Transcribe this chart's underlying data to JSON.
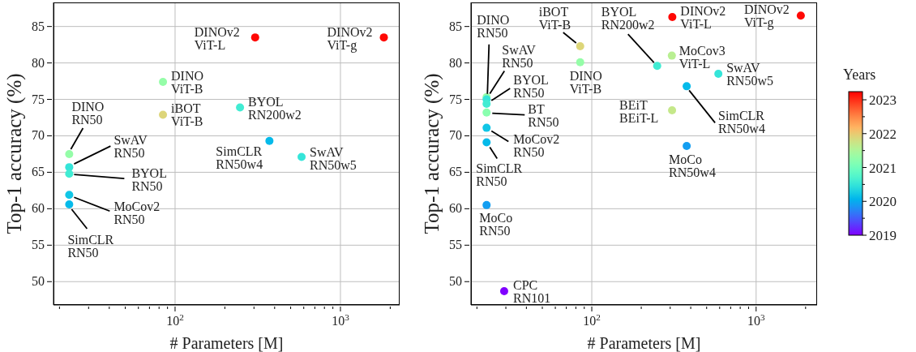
{
  "chart_data": [
    {
      "type": "scatter",
      "xlabel": "# Parameters [M]",
      "ylabel": "Top-1 accuracy (%)",
      "log": "x",
      "grid": true,
      "marker": "circle",
      "xlim": [
        18.4,
        2280
      ],
      "ylim": [
        46.8,
        88.3
      ],
      "xticks": [
        {
          "value": 20,
          "label": null
        },
        {
          "value": 30,
          "label": null
        },
        {
          "value": 40,
          "label": null
        },
        {
          "value": 50,
          "label": null
        },
        {
          "value": 60,
          "label": null
        },
        {
          "value": 70,
          "label": null
        },
        {
          "value": 80,
          "label": null
        },
        {
          "value": 90,
          "label": null
        },
        {
          "value": 100,
          "label": "10$^{2}$"
        },
        {
          "value": 200,
          "label": null
        },
        {
          "value": 300,
          "label": null
        },
        {
          "value": 400,
          "label": null
        },
        {
          "value": 500,
          "label": null
        },
        {
          "value": 600,
          "label": null
        },
        {
          "value": 700,
          "label": null
        },
        {
          "value": 800,
          "label": null
        },
        {
          "value": 900,
          "label": null
        },
        {
          "value": 1000,
          "label": "10$^{3}$"
        },
        {
          "value": 2000,
          "label": null
        }
      ],
      "yticks": [
        50,
        55,
        60,
        65,
        70,
        75,
        80,
        85
      ],
      "x": [
        305,
        1830,
        84.5,
        84.5,
        247,
        372,
        582,
        22.9,
        22.9,
        22.9,
        22.9,
        22.9
      ],
      "values": [
        83.5,
        83.5,
        77.4,
        72.9,
        73.9,
        69.3,
        67.1,
        67.5,
        65.7,
        64.8,
        61.9,
        60.6
      ],
      "colors": [
        "#ff0804",
        "#ff0804",
        "#95fda8",
        "#ddd579",
        "#41ecd3",
        "#05baea",
        "#35e5d9",
        "#95fda8",
        "#35e5d9",
        "#41ecd3",
        "#11c6e6",
        "#05baea"
      ],
      "annotations": [
        {
          "text": "DINOv2\nViT-L",
          "x": 305,
          "y": 83.5
        },
        {
          "text": "DINOv2\nViT-g",
          "x": 1830,
          "y": 83.5
        },
        {
          "text": "DINO\nViT-B",
          "x": 84.5,
          "y": 77.4
        },
        {
          "text": "iBOT\nViT-B",
          "x": 84.5,
          "y": 72.9
        },
        {
          "text": "BYOL\nRN200w2",
          "x": 247,
          "y": 73.9
        },
        {
          "text": "SimCLR\nRN50w4",
          "x": 372,
          "y": 69.3
        },
        {
          "text": "SwAV\nRN50w5",
          "x": 582,
          "y": 67.1
        },
        {
          "text": "DINO\nRN50",
          "x": 22.9,
          "y": 67.5
        },
        {
          "text": "SwAV\nRN50",
          "x": 22.9,
          "y": 65.7
        },
        {
          "text": "BYOL\nRN50",
          "x": 22.9,
          "y": 64.8
        },
        {
          "text": "MoCov2\nRN50",
          "x": 22.9,
          "y": 61.9
        },
        {
          "text": "SimCLR\nRN50",
          "x": 22.9,
          "y": 60.6
        }
      ]
    },
    {
      "type": "scatter",
      "xlabel": "# Parameters [M]",
      "ylabel": "Top-1 accuracy (%)",
      "log": "x",
      "grid": true,
      "marker": "circle",
      "xlim": [
        18.4,
        2350
      ],
      "ylim": [
        46.8,
        88.3
      ],
      "xticks": [
        {
          "value": 20,
          "label": null
        },
        {
          "value": 30,
          "label": null
        },
        {
          "value": 40,
          "label": null
        },
        {
          "value": 50,
          "label": null
        },
        {
          "value": 60,
          "label": null
        },
        {
          "value": 70,
          "label": null
        },
        {
          "value": 80,
          "label": null
        },
        {
          "value": 90,
          "label": null
        },
        {
          "value": 100,
          "label": "10$^{2}$"
        },
        {
          "value": 200,
          "label": null
        },
        {
          "value": 300,
          "label": null
        },
        {
          "value": 400,
          "label": null
        },
        {
          "value": 500,
          "label": null
        },
        {
          "value": 600,
          "label": null
        },
        {
          "value": 700,
          "label": null
        },
        {
          "value": 800,
          "label": null
        },
        {
          "value": 900,
          "label": null
        },
        {
          "value": 1000,
          "label": "10$^{3}$"
        },
        {
          "value": 2000,
          "label": null
        }
      ],
      "yticks": [
        50,
        55,
        60,
        65,
        70,
        75,
        80,
        85
      ],
      "clabel": "Years",
      "clim": [
        2019,
        2023.24
      ],
      "cticks": [
        2019,
        {
          "value": 2019.5,
          "label": null
        },
        2020,
        {
          "value": 2020.5,
          "label": null
        },
        2021,
        {
          "value": 2021.5,
          "label": null
        },
        2022,
        {
          "value": 2022.5,
          "label": null
        },
        2023
      ],
      "x": [
        309,
        1870,
        85,
        85,
        250,
        307,
        589,
        378,
        308,
        378,
        22.9,
        22.9,
        22.9,
        22.9,
        22.9,
        22.9,
        22.9,
        29.3
      ],
      "values": [
        86.3,
        86.5,
        82.3,
        80.1,
        79.6,
        81.0,
        78.5,
        76.8,
        73.5,
        68.6,
        75.3,
        75.0,
        74.4,
        73.2,
        71.1,
        69.1,
        60.5,
        48.7
      ],
      "cvalues": [
        2023.2,
        2023.2,
        2021.9,
        2021.3,
        2020.6,
        2021.6,
        2020.5,
        2020.1,
        2021.7,
        2019.9,
        2021.3,
        2020.5,
        2020.6,
        2021.2,
        2020.2,
        2020.1,
        2019.9,
        2019.0
      ],
      "annotations": [
        {
          "text": "DINOv2\nViT-L",
          "x": 309,
          "y": 86.3
        },
        {
          "text": "DINOv2\nViT-g",
          "x": 1870,
          "y": 86.5
        },
        {
          "text": "iBOT\nViT-B",
          "x": 85,
          "y": 82.3
        },
        {
          "text": "DINO\nViT-B",
          "x": 85,
          "y": 80.1
        },
        {
          "text": "BYOL\nRN200w2",
          "x": 250,
          "y": 79.6
        },
        {
          "text": "MoCov3\nViT-L",
          "x": 307,
          "y": 81.0
        },
        {
          "text": "SwAV\nRN50w5",
          "x": 589,
          "y": 78.5
        },
        {
          "text": "SimCLR\nRN50w4",
          "x": 378,
          "y": 76.8
        },
        {
          "text": "BEiT\nBEiT-L",
          "x": 308,
          "y": 73.5
        },
        {
          "text": "MoCo\nRN50w4",
          "x": 378,
          "y": 68.6
        },
        {
          "text": "DINO\nRN50",
          "x": 22.9,
          "y": 75.3
        },
        {
          "text": "SwAV\nRN50",
          "x": 22.9,
          "y": 75.0
        },
        {
          "text": "BYOL\nRN50",
          "x": 22.9,
          "y": 74.4
        },
        {
          "text": "BT\nRN50",
          "x": 22.9,
          "y": 73.2
        },
        {
          "text": "MoCov2\nRN50",
          "x": 22.9,
          "y": 71.1
        },
        {
          "text": "SimCLR\nRN50",
          "x": 22.9,
          "y": 69.1
        },
        {
          "text": "MoCo\nRN50",
          "x": 22.9,
          "y": 60.5
        },
        {
          "text": "CPC\nRN101",
          "x": 29.3,
          "y": 48.7
        }
      ]
    }
  ]
}
